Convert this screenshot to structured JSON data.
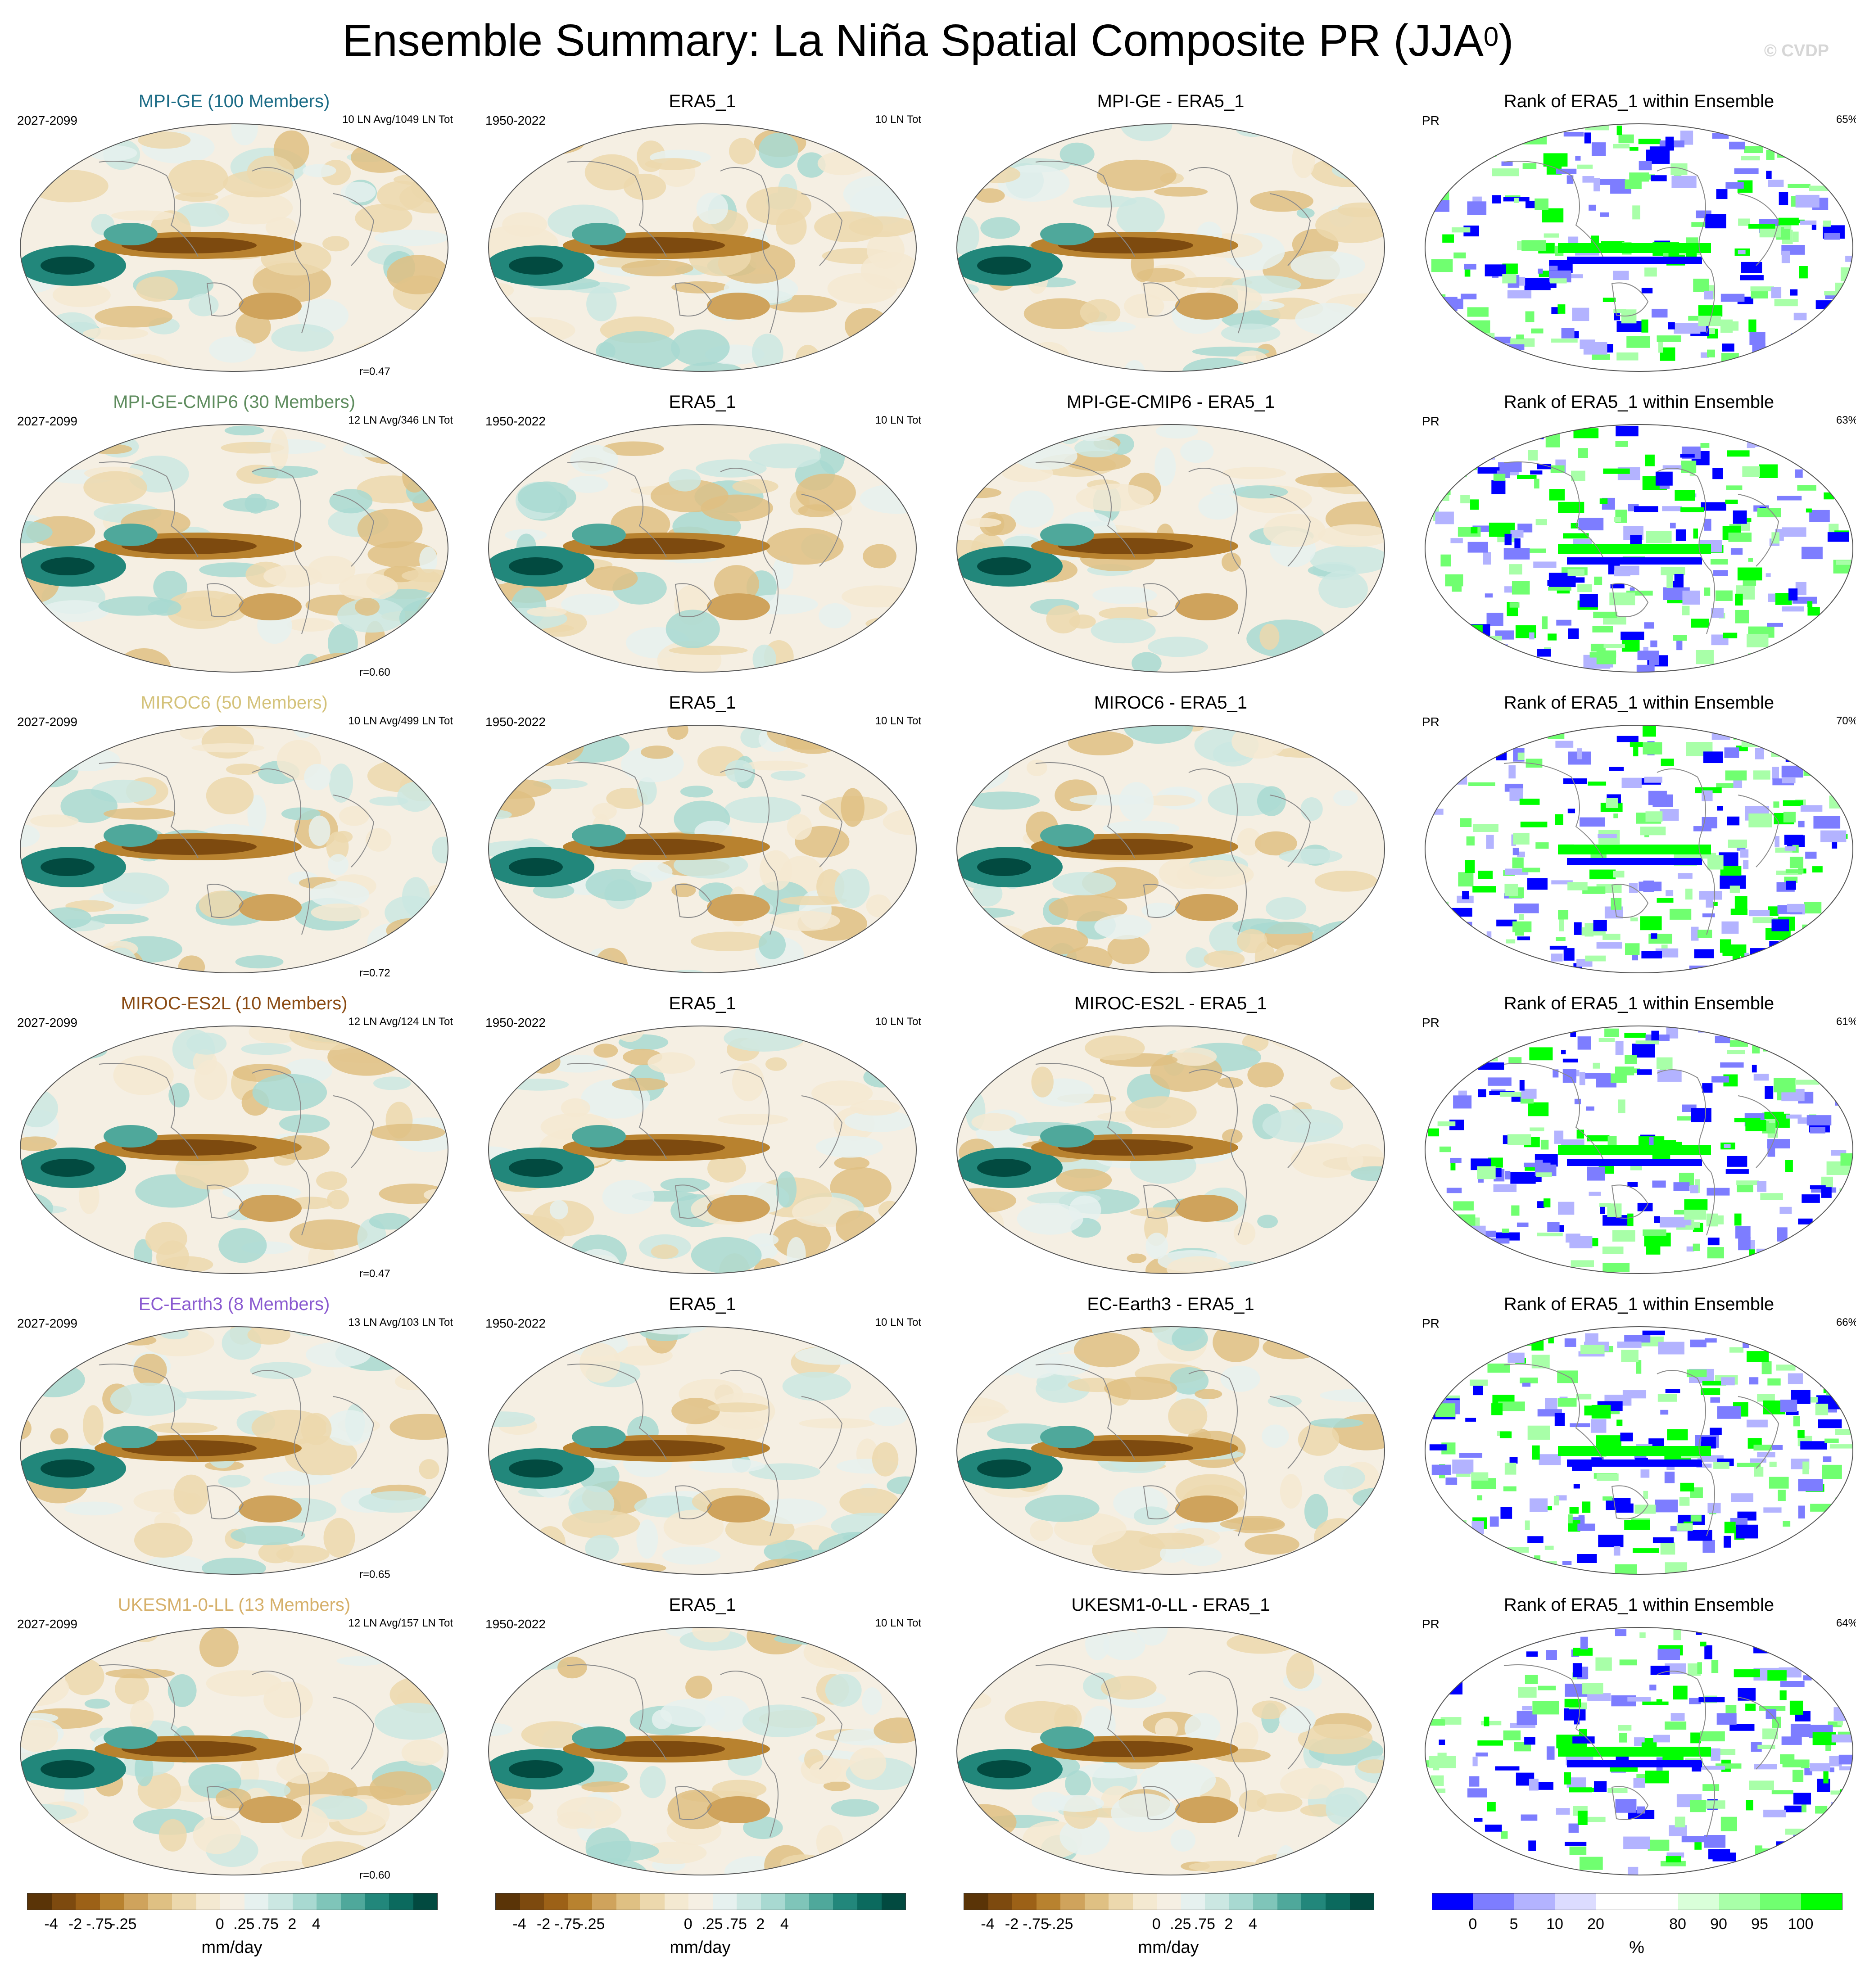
{
  "title": {
    "main": "Ensemble Summary: La Niña Spatial Composite PR (JJA",
    "sup": "0",
    "close": ")"
  },
  "watermark": "© CVDP",
  "colors": {
    "diverging": [
      "#5a3407",
      "#7d4a0f",
      "#9c6117",
      "#b8822f",
      "#cfa35c",
      "#dfc083",
      "#ecd8ad",
      "#f4e9d1",
      "#f5efe3",
      "#e6f1ef",
      "#cbe7e2",
      "#a8d9d1",
      "#7fc5b9",
      "#4fa89b",
      "#22877b",
      "#0b6a5e",
      "#024a40"
    ],
    "rank": [
      "#0000ff",
      "#7d7dff",
      "#b3b3ff",
      "#dcdcff",
      "#ffffff",
      "#ffffff",
      "#d9ffd9",
      "#a8ffa8",
      "#70ff70",
      "#00ff00"
    ],
    "model_title_colors": [
      "#1c6c86",
      "#5e8c5e",
      "#d4c27a",
      "#8a4a12",
      "#8a5ad0",
      "#d6b06a"
    ]
  },
  "rows": [
    {
      "model": "MPI-GE (100 Members)",
      "model_short": "MPI-GE",
      "years_model": "2027-2099",
      "ln_model": "10 LN Avg/1049 LN Tot",
      "r": "r=0.47",
      "obs_title": "ERA5_1",
      "years_obs": "1950-2022",
      "ln_obs": "10 LN Tot",
      "diff_title": "MPI-GE - ERA5_1",
      "rank_title": "Rank of ERA5_1 within Ensemble",
      "rank_var": "PR",
      "rank_pct": "65%"
    },
    {
      "model": "MPI-GE-CMIP6 (30 Members)",
      "model_short": "MPI-GE-CMIP6",
      "years_model": "2027-2099",
      "ln_model": "12 LN Avg/346 LN Tot",
      "r": "r=0.60",
      "obs_title": "ERA5_1",
      "years_obs": "1950-2022",
      "ln_obs": "10 LN Tot",
      "diff_title": "MPI-GE-CMIP6 - ERA5_1",
      "rank_title": "Rank of ERA5_1 within Ensemble",
      "rank_var": "PR",
      "rank_pct": "63%"
    },
    {
      "model": "MIROC6 (50 Members)",
      "model_short": "MIROC6",
      "years_model": "2027-2099",
      "ln_model": "10 LN Avg/499 LN Tot",
      "r": "r=0.72",
      "obs_title": "ERA5_1",
      "years_obs": "1950-2022",
      "ln_obs": "10 LN Tot",
      "diff_title": "MIROC6 - ERA5_1",
      "rank_title": "Rank of ERA5_1 within Ensemble",
      "rank_var": "PR",
      "rank_pct": "70%"
    },
    {
      "model": "MIROC-ES2L (10 Members)",
      "model_short": "MIROC-ES2L",
      "years_model": "2027-2099",
      "ln_model": "12 LN Avg/124 LN Tot",
      "r": "r=0.47",
      "obs_title": "ERA5_1",
      "years_obs": "1950-2022",
      "ln_obs": "10 LN Tot",
      "diff_title": "MIROC-ES2L - ERA5_1",
      "rank_title": "Rank of ERA5_1 within Ensemble",
      "rank_var": "PR",
      "rank_pct": "61%"
    },
    {
      "model": "EC-Earth3 (8 Members)",
      "model_short": "EC-Earth3",
      "years_model": "2027-2099",
      "ln_model": "13 LN Avg/103 LN Tot",
      "r": "r=0.65",
      "obs_title": "ERA5_1",
      "years_obs": "1950-2022",
      "ln_obs": "10 LN Tot",
      "diff_title": "EC-Earth3 - ERA5_1",
      "rank_title": "Rank of ERA5_1 within Ensemble",
      "rank_var": "PR",
      "rank_pct": "66%"
    },
    {
      "model": "UKESM1-0-LL (13 Members)",
      "model_short": "UKESM1-0-LL",
      "years_model": "2027-2099",
      "ln_model": "12 LN Avg/157 LN Tot",
      "r": "r=0.60",
      "obs_title": "ERA5_1",
      "years_obs": "1950-2022",
      "ln_obs": "10 LN Tot",
      "diff_title": "UKESM1-0-LL - ERA5_1",
      "rank_title": "Rank of ERA5_1 within Ensemble",
      "rank_var": "PR",
      "rank_pct": "64%"
    }
  ],
  "colorbars": {
    "diverging_ticks": [
      "-4",
      "-2",
      "-.75",
      "-.25",
      "0",
      ".25",
      ".75",
      "2",
      "4"
    ],
    "diverging_unit": "mm/day",
    "rank_ticks": [
      "0",
      "5",
      "10",
      "20",
      "80",
      "90",
      "95",
      "100"
    ],
    "rank_unit": "%"
  }
}
